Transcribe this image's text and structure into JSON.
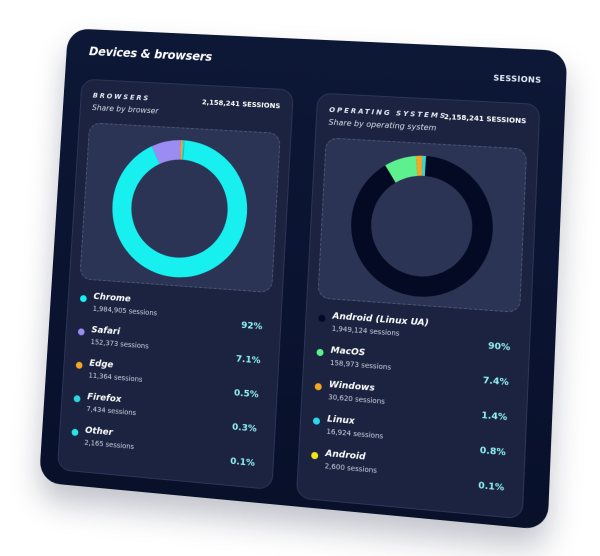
{
  "card": {
    "title": "Devices & browsers",
    "metric_label": "SESSIONS"
  },
  "browsers": {
    "label": "BROWSERS",
    "subtitle": "Share by browser",
    "total": "2,158,241 SESSIONS",
    "items": [
      {
        "name": "Chrome",
        "sessions": "1,984,905 sessions",
        "pct": "92%",
        "color": "#18f0f0"
      },
      {
        "name": "Safari",
        "sessions": "152,373 sessions",
        "pct": "7.1%",
        "color": "#9a8cf2"
      },
      {
        "name": "Edge",
        "sessions": "11,364 sessions",
        "pct": "0.5%",
        "color": "#f5a623"
      },
      {
        "name": "Firefox",
        "sessions": "7,434 sessions",
        "pct": "0.3%",
        "color": "#2ad6e0"
      },
      {
        "name": "Other",
        "sessions": "2,165 sessions",
        "pct": "0.1%",
        "color": "#22e6e8"
      }
    ]
  },
  "os": {
    "label": "OPERATING SYSTEMS",
    "subtitle": "Share by operating system",
    "total": "2,158,241 SESSIONS",
    "items": [
      {
        "name": "Android (Linux UA)",
        "sessions": "1,949,124 sessions",
        "pct": "90%",
        "color": "#050a24"
      },
      {
        "name": "MacOS",
        "sessions": "158,973 sessions",
        "pct": "7.4%",
        "color": "#5ef08f"
      },
      {
        "name": "Windows",
        "sessions": "30,620 sessions",
        "pct": "1.4%",
        "color": "#f5a623"
      },
      {
        "name": "Linux",
        "sessions": "16,924 sessions",
        "pct": "0.8%",
        "color": "#2ad8ea"
      },
      {
        "name": "Android",
        "sessions": "2,600 sessions",
        "pct": "0.1%",
        "color": "#f7e21a"
      }
    ]
  },
  "chart_data": [
    {
      "type": "pie",
      "title": "Browsers — Share by browser",
      "categories": [
        "Chrome",
        "Safari",
        "Edge",
        "Firefox",
        "Other"
      ],
      "values": [
        1984905,
        152373,
        11364,
        7434,
        2165
      ],
      "percentages": [
        92,
        7.1,
        0.5,
        0.3,
        0.1
      ],
      "colors": [
        "#18f0f0",
        "#9a8cf2",
        "#f5a623",
        "#2ad6e0",
        "#22e6e8"
      ],
      "total": 2158241,
      "donut": true
    },
    {
      "type": "pie",
      "title": "Operating systems — Share by operating system",
      "categories": [
        "Android (Linux UA)",
        "MacOS",
        "Windows",
        "Linux",
        "Android"
      ],
      "values": [
        1949124,
        158973,
        30620,
        16924,
        2600
      ],
      "percentages": [
        90,
        7.4,
        1.4,
        0.8,
        0.1
      ],
      "colors": [
        "#050a24",
        "#5ef08f",
        "#f5a623",
        "#2ad8ea",
        "#f7e21a"
      ],
      "total": 2158241,
      "donut": true
    }
  ]
}
